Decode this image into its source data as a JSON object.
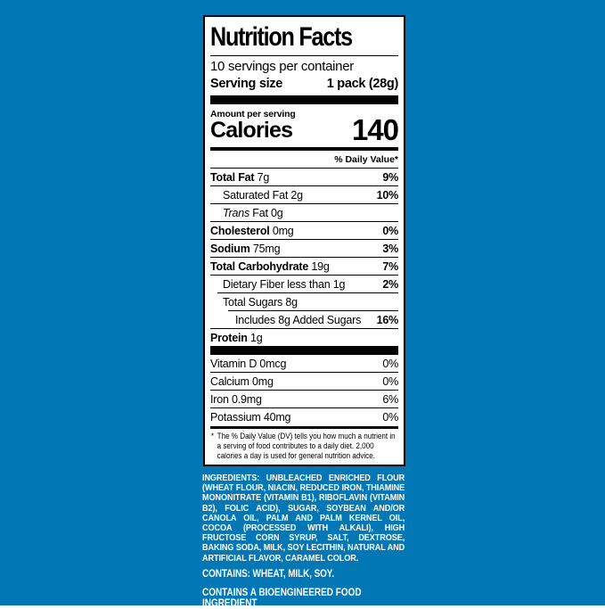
{
  "colors": {
    "background": "#0277b5",
    "label_background": "#ffffff",
    "label_text": "#000000",
    "ingredients_text": "#ffffff"
  },
  "label": {
    "title": "Nutrition Facts",
    "servings_per_container": "10 servings per container",
    "serving_size_label": "Serving size",
    "serving_size_value": "1 pack (28g)",
    "amount_per_serving": "Amount per serving",
    "calories_label": "Calories",
    "calories_value": "140",
    "daily_value_header": "% Daily Value*",
    "nutrients": [
      {
        "bold": "Total Fat",
        "text": " 7g",
        "dv": "9%"
      },
      {
        "text": "Saturated Fat 2g",
        "dv": "10%"
      },
      {
        "italic": "Trans",
        "text": " Fat 0g",
        "dv": ""
      },
      {
        "bold": "Cholesterol",
        "text": " 0mg",
        "dv": "0%"
      },
      {
        "bold": "Sodium",
        "text": " 75mg",
        "dv": "3%"
      },
      {
        "bold": "Total Carbohydrate",
        "text": " 19g",
        "dv": "7%"
      },
      {
        "text": "Dietary Fiber less than 1g",
        "dv": "2%"
      },
      {
        "text": "Total Sugars 8g",
        "dv": ""
      },
      {
        "text": "Includes 8g Added Sugars",
        "dv": "16%"
      },
      {
        "bold": "Protein",
        "text": " 1g",
        "dv": ""
      }
    ],
    "vitamins": [
      {
        "text": "Vitamin D 0mcg",
        "dv": "0%"
      },
      {
        "text": "Calcium 0mg",
        "dv": "0%"
      },
      {
        "text": "Iron 0.9mg",
        "dv": "6%"
      },
      {
        "text": "Potassium 40mg",
        "dv": "0%"
      }
    ],
    "footnote_marker": "*",
    "footnote": "The % Daily Value (DV) tells you how much a nutrient in a serving of food contributes to a daily diet. 2,000 calories a day is used for general nutrition advice."
  },
  "ingredients": {
    "text": "INGREDIENTS: UNBLEACHED ENRICHED FLOUR (WHEAT FLOUR, NIACIN, REDUCED IRON, THIAMINE MONONITRATE (VITAMIN B1), RIBOFLAVIN (VITAMIN B2), FOLIC ACID), SUGAR, SOYBEAN AND/OR CANOLA OIL, PALM AND PALM KERNEL OIL, COCOA (PROCESSED WITH ALKALI), HIGH FRUCTOSE CORN SYRUP, SALT, DEXTROSE, BAKING SODA, MILK, SOY LECITHIN, NATURAL AND ARTIFICIAL FLAVOR, CARAMEL COLOR.",
    "contains": "CONTAINS: WHEAT, MILK, SOY.",
    "bioengineered": "CONTAINS A BIOENGINEERED FOOD INGREDIENT"
  }
}
